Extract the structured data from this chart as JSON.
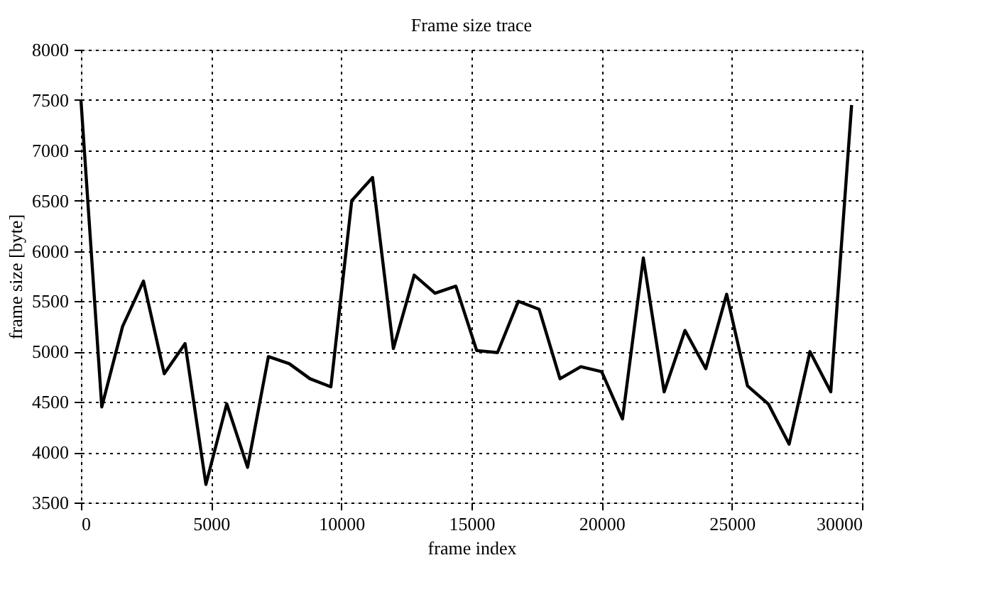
{
  "chart_data": {
    "type": "line",
    "title": "Frame size trace",
    "xlabel": "frame index",
    "ylabel": "frame size [byte]",
    "x": [
      0,
      800,
      1600,
      2400,
      3200,
      4000,
      4800,
      5600,
      6400,
      7200,
      8000,
      8800,
      9600,
      10400,
      11200,
      12000,
      12800,
      13600,
      14400,
      15200,
      16000,
      16800,
      17600,
      18400,
      19200,
      20000,
      20800,
      21600,
      22400,
      23200,
      24000,
      24800,
      25600,
      26400,
      27200,
      28000,
      28800,
      29600
    ],
    "series": [
      {
        "color": "#000000",
        "values": [
          7500,
          4450,
          5250,
          5700,
          4780,
          5080,
          3680,
          4480,
          3850,
          4950,
          4880,
          4730,
          4650,
          6500,
          6730,
          5030,
          5760,
          5580,
          5650,
          5010,
          4990,
          5500,
          5420,
          4730,
          4850,
          4800,
          4330,
          5930,
          4600,
          5210,
          4830,
          5570,
          4660,
          4480,
          4080,
          5000,
          4600,
          7450
        ]
      }
    ],
    "xlim": [
      0,
      30000
    ],
    "xticks": [
      0,
      5000,
      10000,
      15000,
      20000,
      25000,
      30000
    ],
    "ylim": [
      3500,
      8000
    ],
    "yticks": [
      3500,
      4000,
      4500,
      5000,
      5500,
      6000,
      6500,
      7000,
      7500,
      8000
    ],
    "grid": true,
    "line_style": "solid",
    "marker": "none"
  }
}
